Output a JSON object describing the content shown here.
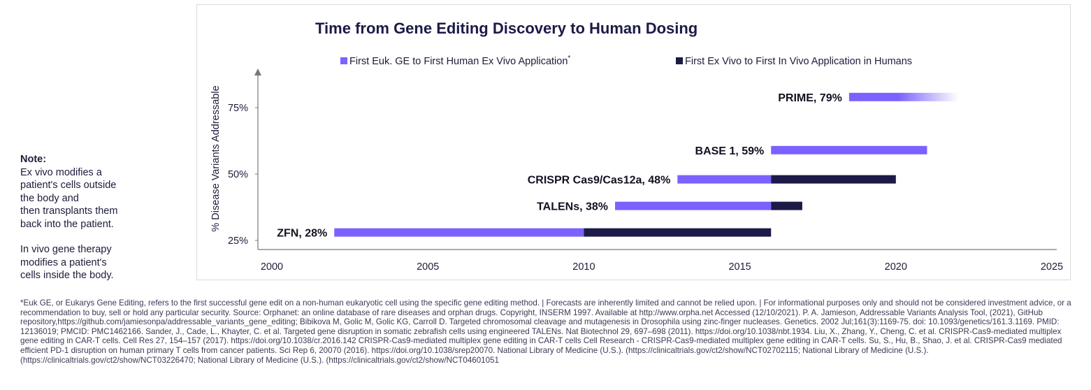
{
  "note": {
    "title": "Note:",
    "ex_vivo": "Ex vivo modifies a\npatient's cells outside\nthe body and\nthen transplants them\nback into the patient.",
    "in_vivo": "In vivo gene therapy\nmodifies a patient's\ncells inside the body."
  },
  "colors": {
    "series1": "#7b61ff",
    "series2": "#1c1a47",
    "text": "#1c1c3a",
    "axis": "#777777"
  },
  "chart_data": {
    "type": "bar",
    "orientation": "horizontal-range",
    "title": "Time from Gene Editing Discovery to Human Dosing",
    "xlabel": "",
    "ylabel": "% Disease Variants Addressable",
    "xlim": [
      2000,
      2025
    ],
    "xticks": [
      "2000",
      "2005",
      "2010",
      "2015",
      "2020",
      "2025"
    ],
    "xtick_values": [
      2000,
      2005,
      2010,
      2015,
      2020,
      2025
    ],
    "ylim": [
      23,
      88
    ],
    "yticks": [
      "25%",
      "50%",
      "75%"
    ],
    "ytick_values": [
      25,
      50,
      75
    ],
    "legend_position": "top",
    "series": [
      {
        "name": "First Euk. GE to First Human Ex Vivo Application",
        "superscript": "*"
      },
      {
        "name": "First Ex Vivo to First In Vivo Application in Humans",
        "superscript": ""
      }
    ],
    "items": [
      {
        "label": "ZFN, 28%",
        "y": 28,
        "ex_vivo_start": 2002,
        "ex_vivo_end": 2010,
        "in_vivo_end": 2016,
        "faded": false
      },
      {
        "label": "TALENs, 38%",
        "y": 38,
        "ex_vivo_start": 2011,
        "ex_vivo_end": 2016,
        "in_vivo_end": 2017,
        "faded": false
      },
      {
        "label": "CRISPR Cas9/Cas12a, 48%",
        "y": 48,
        "ex_vivo_start": 2013,
        "ex_vivo_end": 2016,
        "in_vivo_end": 2020,
        "faded": false
      },
      {
        "label": "BASE 1, 59%",
        "y": 59,
        "ex_vivo_start": 2016,
        "ex_vivo_end": 2021,
        "in_vivo_end": null,
        "faded": false
      },
      {
        "label": "PRIME, 79%",
        "y": 79,
        "ex_vivo_start": 2018.5,
        "ex_vivo_end": 2022,
        "in_vivo_end": null,
        "faded": true
      }
    ]
  },
  "footnote": "*Euk GE, or Eukarys Gene Editing, refers to the first successful gene edit on a non-human eukaryotic cell using the specific gene editing method. | Forecasts are inherently limited and cannot be relied upon. | For informational purposes only and should not be considered investment advice, or a recommendation to buy, sell or hold any particular security. Source: Orphanet: an online database of rare diseases and orphan drugs. Copyright, INSERM 1997. Available at http://www.orpha.net Accessed (12/10/2021). P. A. Jamieson, Addressable Variants Analysis Tool, (2021), GitHub repository,https://github.com/jamiesonpa/addressable_variants_gene_editing; Bibikova M, Golic M, Golic KG, Carroll D. Targeted chromosomal cleavage and mutagenesis in Drosophila using zinc-finger nucleases. Genetics. 2002 Jul;161(3):1169-75. doi: 10.1093/genetics/161.3.1169. PMID: 12136019; PMCID: PMC1462166. Sander, J., Cade, L., Khayter, C. et al. Targeted gene disruption in somatic zebrafish cells using engineered TALENs. Nat Biotechnol 29, 697–698 (2011). https://doi.org/10.1038/nbt.1934. Liu, X., Zhang, Y., Cheng, C. et al. CRISPR-Cas9-mediated multiplex gene editing in CAR-T cells. Cell Res 27, 154–157 (2017). https://doi.org/10.1038/cr.2016.142 CRISPR-Cas9-mediated multiplex gene editing in CAR-T cells Cell Research - CRISPR-Cas9-mediated multiplex gene editing in CAR-T cells. Su, S., Hu, B., Shao, J. et al. CRISPR-Cas9 mediated efficient PD-1 disruption on human primary T cells from cancer patients. Sci Rep 6, 20070 (2016). https://doi.org/10.1038/srep20070. National Library of Medicine (U.S.). (https://clinicaltrials.gov/ct2/show/NCT02702115; National Library of Medicine (U.S.). (https://clinicaltrials.gov/ct2/show/NCT03226470; National Library of Medicine (U.S.). (https://clinicaltrials.gov/ct2/show/NCT04601051"
}
